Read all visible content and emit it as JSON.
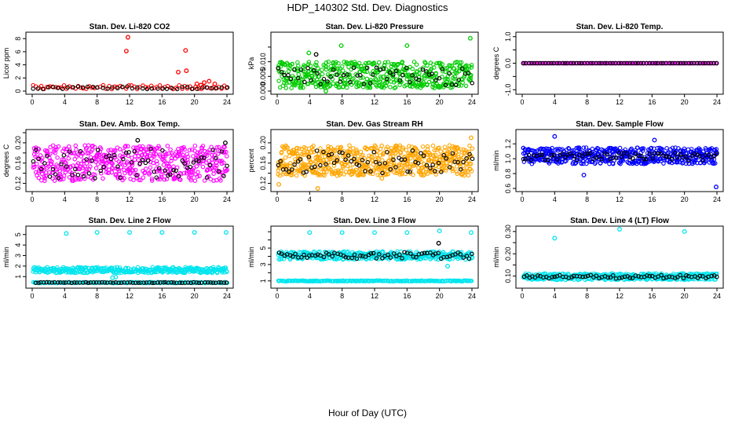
{
  "figure": {
    "title": "HDP_140302  Std. Dev. Diagnostics",
    "xlabel": "Hour of Day (UTC)"
  },
  "chart_data": [
    {
      "type": "scatter",
      "title": "Stan. Dev. Li-820 CO2",
      "ylabel": "Licor ppm",
      "xlim": [
        0,
        24
      ],
      "ylim": [
        0,
        8.5
      ],
      "xticks": [
        "0",
        "4",
        "8",
        "12",
        "16",
        "20",
        "24"
      ],
      "yticks": [
        0,
        2,
        4,
        6,
        8
      ],
      "yticklabels": [
        "0",
        "2",
        "4",
        "6",
        "8"
      ],
      "bands": [
        {
          "color": "#ff0000",
          "from": 0.1,
          "to": 24,
          "lo": 0.3,
          "hi": 0.9,
          "n": 70
        },
        {
          "color": "#000000",
          "from": 0.1,
          "to": 24,
          "lo": 0.3,
          "hi": 0.7,
          "n": 40
        }
      ],
      "series": [
        {
          "color": "#ff0000",
          "x": [
            11.8,
            11.6,
            18.0,
            18.9,
            19.0,
            20.3,
            21.2,
            21.8,
            20.8,
            22.5
          ],
          "y": [
            8.2,
            6.1,
            2.9,
            6.2,
            3.1,
            1.1,
            1.3,
            1.5,
            0.9,
            1.1
          ]
        }
      ]
    },
    {
      "type": "scatter",
      "title": "Stan. Dev. Li-820 Pressure",
      "ylabel": "kPa",
      "xlim": [
        0,
        24
      ],
      "ylim": [
        0,
        0.019
      ],
      "xticks": [
        "0",
        "4",
        "8",
        "12",
        "16",
        "20",
        "24"
      ],
      "yticks": [
        0,
        0.005,
        0.01,
        0.015
      ],
      "yticklabels": [
        "0.000",
        "0.005",
        "0.010",
        ""
      ],
      "bands": [
        {
          "color": "#00cc00",
          "from": 0.1,
          "to": 24,
          "lo": 0.001,
          "hi": 0.01,
          "n": 500
        },
        {
          "color": "#000000",
          "from": 0.1,
          "to": 24,
          "lo": 0.002,
          "hi": 0.008,
          "n": 60
        }
      ],
      "series": [
        {
          "color": "#00cc00",
          "x": [
            7.9,
            16.0,
            23.8,
            3.9,
            6.0
          ],
          "y": [
            0.0155,
            0.0155,
            0.018,
            0.013,
            0.0
          ]
        },
        {
          "color": "#000000",
          "x": [
            4.8
          ],
          "y": [
            0.0125
          ]
        }
      ]
    },
    {
      "type": "scatter",
      "title": "Stan. Dev. Li-820 Temp.",
      "ylabel": "degrees C",
      "xlim": [
        0,
        24
      ],
      "ylim": [
        -1.05,
        1.05
      ],
      "xticks": [
        "0",
        "4",
        "8",
        "12",
        "16",
        "20",
        "24"
      ],
      "yticks": [
        -1,
        -0.5,
        0,
        0.5,
        1
      ],
      "yticklabels": [
        "-1.0",
        "",
        "0.0",
        "",
        "1.0"
      ],
      "bands": [
        {
          "color": "#ff00ff",
          "from": 0.1,
          "to": 24,
          "lo": 0,
          "hi": 0,
          "n": 140
        },
        {
          "color": "#000000",
          "from": 0.1,
          "to": 24,
          "lo": 0,
          "hi": 0,
          "n": 70
        }
      ],
      "series": []
    },
    {
      "type": "scatter",
      "title": "Stan. Dev. Amb. Box Temp.",
      "ylabel": "degrees C",
      "xlim": [
        0,
        24
      ],
      "ylim": [
        0.11,
        0.22
      ],
      "xticks": [
        "0",
        "4",
        "8",
        "12",
        "16",
        "20",
        "24"
      ],
      "yticks": [
        0.12,
        0.14,
        0.16,
        0.18,
        0.2,
        0.22
      ],
      "yticklabels": [
        "0.12",
        "",
        "0.16",
        "",
        "0.20",
        ""
      ],
      "bands": [
        {
          "color": "#ff00ff",
          "from": 0.1,
          "to": 24,
          "lo": 0.125,
          "hi": 0.195,
          "n": 520
        },
        {
          "color": "#000000",
          "from": 0.1,
          "to": 24,
          "lo": 0.13,
          "hi": 0.19,
          "n": 70
        }
      ],
      "series": [
        {
          "color": "#000000",
          "x": [
            13.0,
            23.8
          ],
          "y": [
            0.205,
            0.2
          ]
        }
      ]
    },
    {
      "type": "scatter",
      "title": "Stan. Dev. Gas Stream RH",
      "ylabel": "percent",
      "xlim": [
        0,
        24
      ],
      "ylim": [
        0.11,
        0.22
      ],
      "xticks": [
        "0",
        "4",
        "8",
        "12",
        "16",
        "20",
        "24"
      ],
      "yticks": [
        0.12,
        0.14,
        0.16,
        0.18,
        0.2
      ],
      "yticklabels": [
        "0.12",
        "",
        "0.16",
        "",
        "0.20"
      ],
      "bands": [
        {
          "color": "#ffa500",
          "from": 0.1,
          "to": 24,
          "lo": 0.135,
          "hi": 0.195,
          "n": 620
        },
        {
          "color": "#000000",
          "from": 0.1,
          "to": 24,
          "lo": 0.14,
          "hi": 0.185,
          "n": 70
        }
      ],
      "series": [
        {
          "color": "#ffa500",
          "x": [
            5.0,
            23.9,
            12.9,
            0.2
          ],
          "y": [
            0.11,
            0.21,
            0.13,
            0.118
          ]
        }
      ]
    },
    {
      "type": "scatter",
      "title": "Stan. Dev. Sample Flow",
      "ylabel": "ml/min",
      "xlim": [
        0,
        24
      ],
      "ylim": [
        0.6,
        1.35
      ],
      "xticks": [
        "0",
        "4",
        "8",
        "12",
        "16",
        "20",
        "24"
      ],
      "yticks": [
        0.6,
        0.8,
        1.0,
        1.2
      ],
      "yticklabels": [
        "0.6",
        "0.8",
        "1.0",
        "1.2"
      ],
      "bands": [
        {
          "color": "#0000ff",
          "from": 0.1,
          "to": 24,
          "lo": 0.93,
          "hi": 1.15,
          "n": 560
        },
        {
          "color": "#000000",
          "from": 0.1,
          "to": 24,
          "lo": 0.98,
          "hi": 1.08,
          "n": 70
        }
      ],
      "series": [
        {
          "color": "#0000ff",
          "x": [
            4.0,
            7.6,
            23.9,
            16.3
          ],
          "y": [
            1.3,
            0.78,
            0.62,
            1.25
          ]
        }
      ]
    },
    {
      "type": "scatter",
      "title": "Stan. Dev. Line 2 Flow",
      "ylabel": "ml/min",
      "xlim": [
        0,
        24
      ],
      "ylim": [
        0.2,
        5.5
      ],
      "xticks": [
        "0",
        "4",
        "8",
        "12",
        "16",
        "20",
        "24"
      ],
      "yticks": [
        1,
        2,
        3,
        4,
        5
      ],
      "yticklabels": [
        "1",
        "2",
        "3",
        "4",
        "5"
      ],
      "bands": [
        {
          "color": "#00e5ee",
          "from": 0.1,
          "to": 24,
          "lo": 1.35,
          "hi": 1.9,
          "n": 360
        },
        {
          "color": "#00e5ee",
          "from": 0.1,
          "to": 24,
          "lo": 0.38,
          "hi": 0.48,
          "n": 160
        },
        {
          "color": "#000000",
          "from": 0.4,
          "to": 24,
          "lo": 0.4,
          "hi": 0.46,
          "n": 70
        }
      ],
      "series": [
        {
          "color": "#00e5ee",
          "x": [
            4.2,
            8.0,
            12.0,
            16.0,
            20.0,
            23.9,
            9.9,
            10.3
          ],
          "y": [
            5.1,
            5.2,
            5.2,
            5.2,
            5.2,
            5.2,
            0.9,
            0.95
          ]
        }
      ]
    },
    {
      "type": "scatter",
      "title": "Stan. Dev. Line 3 Flow",
      "ylabel": "ml/min",
      "xlim": [
        0,
        24
      ],
      "ylim": [
        0.5,
        7.3
      ],
      "xticks": [
        "0",
        "4",
        "8",
        "12",
        "16",
        "20",
        "24"
      ],
      "yticks": [
        1,
        2,
        3,
        4,
        5,
        6,
        7
      ],
      "yticklabels": [
        "1",
        "",
        "3",
        "",
        "5",
        "",
        ""
      ],
      "bands": [
        {
          "color": "#00e5ee",
          "from": 0.1,
          "to": 24,
          "lo": 3.6,
          "hi": 4.6,
          "n": 380
        },
        {
          "color": "#00e5ee",
          "from": 0.1,
          "to": 24,
          "lo": 0.95,
          "hi": 1.05,
          "n": 200
        },
        {
          "color": "#000000",
          "from": 0.2,
          "to": 24,
          "lo": 3.7,
          "hi": 4.5,
          "n": 70
        }
      ],
      "series": [
        {
          "color": "#00e5ee",
          "x": [
            4.0,
            8.0,
            12.0,
            16.0,
            20.0,
            23.9,
            21.0
          ],
          "y": [
            6.9,
            6.9,
            6.9,
            6.9,
            7.1,
            6.9,
            2.8
          ]
        },
        {
          "color": "#000000",
          "x": [
            19.9
          ],
          "y": [
            5.6
          ]
        }
      ]
    },
    {
      "type": "scatter",
      "title": "Stan. Dev. Line 4 (LT) Flow",
      "ylabel": "ml/min",
      "xlim": [
        0,
        24
      ],
      "ylim": [
        0.06,
        0.31
      ],
      "xticks": [
        "0",
        "4",
        "8",
        "12",
        "16",
        "20",
        "24"
      ],
      "yticks": [
        0.1,
        0.15,
        0.2,
        0.25,
        0.3
      ],
      "yticklabels": [
        "0.10",
        "",
        "0.20",
        "",
        "0.30"
      ],
      "bands": [
        {
          "color": "#00e5ee",
          "from": 0.1,
          "to": 24,
          "lo": 0.083,
          "hi": 0.112,
          "n": 420
        },
        {
          "color": "#000000",
          "from": 0.2,
          "to": 24,
          "lo": 0.088,
          "hi": 0.105,
          "n": 70
        }
      ],
      "series": [
        {
          "color": "#00e5ee",
          "x": [
            4.0,
            12.0,
            20.0
          ],
          "y": [
            0.27,
            0.31,
            0.3
          ]
        }
      ]
    }
  ]
}
